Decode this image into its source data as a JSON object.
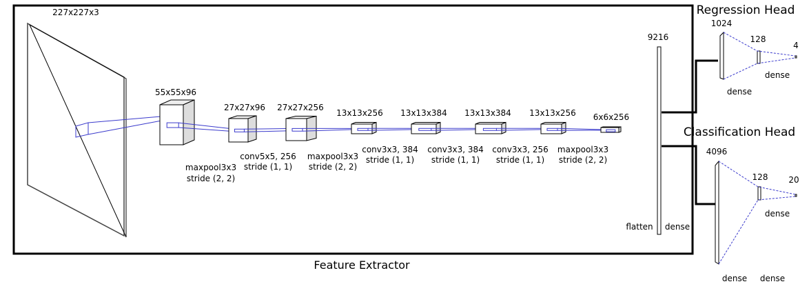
{
  "feature_extractor": {
    "caption": "Feature Extractor",
    "input_size": "227x227x3",
    "layers": [
      "55x55x96",
      "27x27x96",
      "27x27x256",
      "13x13x256",
      "13x13x384",
      "13x13x384",
      "13x13x256",
      "6x6x256"
    ],
    "operations": [
      {
        "op": "maxpool3x3",
        "stride": "stride (2, 2)"
      },
      {
        "op": "conv5x5, 256",
        "stride": "stride (1, 1)"
      },
      {
        "op": "maxpool3x3",
        "stride": "stride (2, 2)"
      },
      {
        "op": "conv3x3, 384",
        "stride": "stride (1, 1)"
      },
      {
        "op": "conv3x3, 384",
        "stride": "stride (1, 1)"
      },
      {
        "op": "conv3x3, 256",
        "stride": "stride (1, 1)"
      },
      {
        "op": "maxpool3x3",
        "stride": "stride (2, 2)"
      }
    ]
  },
  "flatten": {
    "size": "9216",
    "label": "flatten",
    "dense_label": "dense"
  },
  "regression_head": {
    "title": "Regression Head",
    "sizes": [
      "1024",
      "128",
      "4"
    ],
    "dense_labels": [
      "dense",
      "dense"
    ]
  },
  "classification_head": {
    "title": "Classification Head",
    "sizes": [
      "4096",
      "128",
      "20"
    ],
    "dense_labels": [
      "dense",
      "dense",
      "dense"
    ]
  }
}
